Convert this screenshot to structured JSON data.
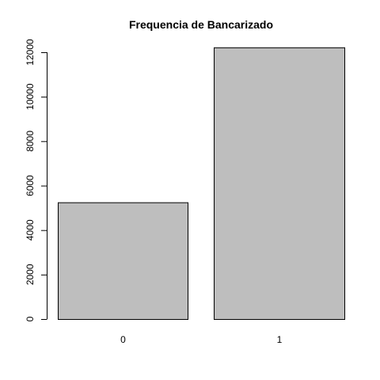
{
  "chart_data": {
    "type": "bar",
    "title": "Frequencia de Bancarizado",
    "xlabel": "",
    "ylabel": "",
    "categories": [
      "0",
      "1"
    ],
    "values": [
      5250,
      12220
    ],
    "ylim": [
      0,
      12000
    ],
    "yticks": [
      0,
      2000,
      4000,
      6000,
      8000,
      10000,
      12000
    ],
    "bar_color": "#bebebe",
    "grid": false,
    "legend": "none"
  }
}
